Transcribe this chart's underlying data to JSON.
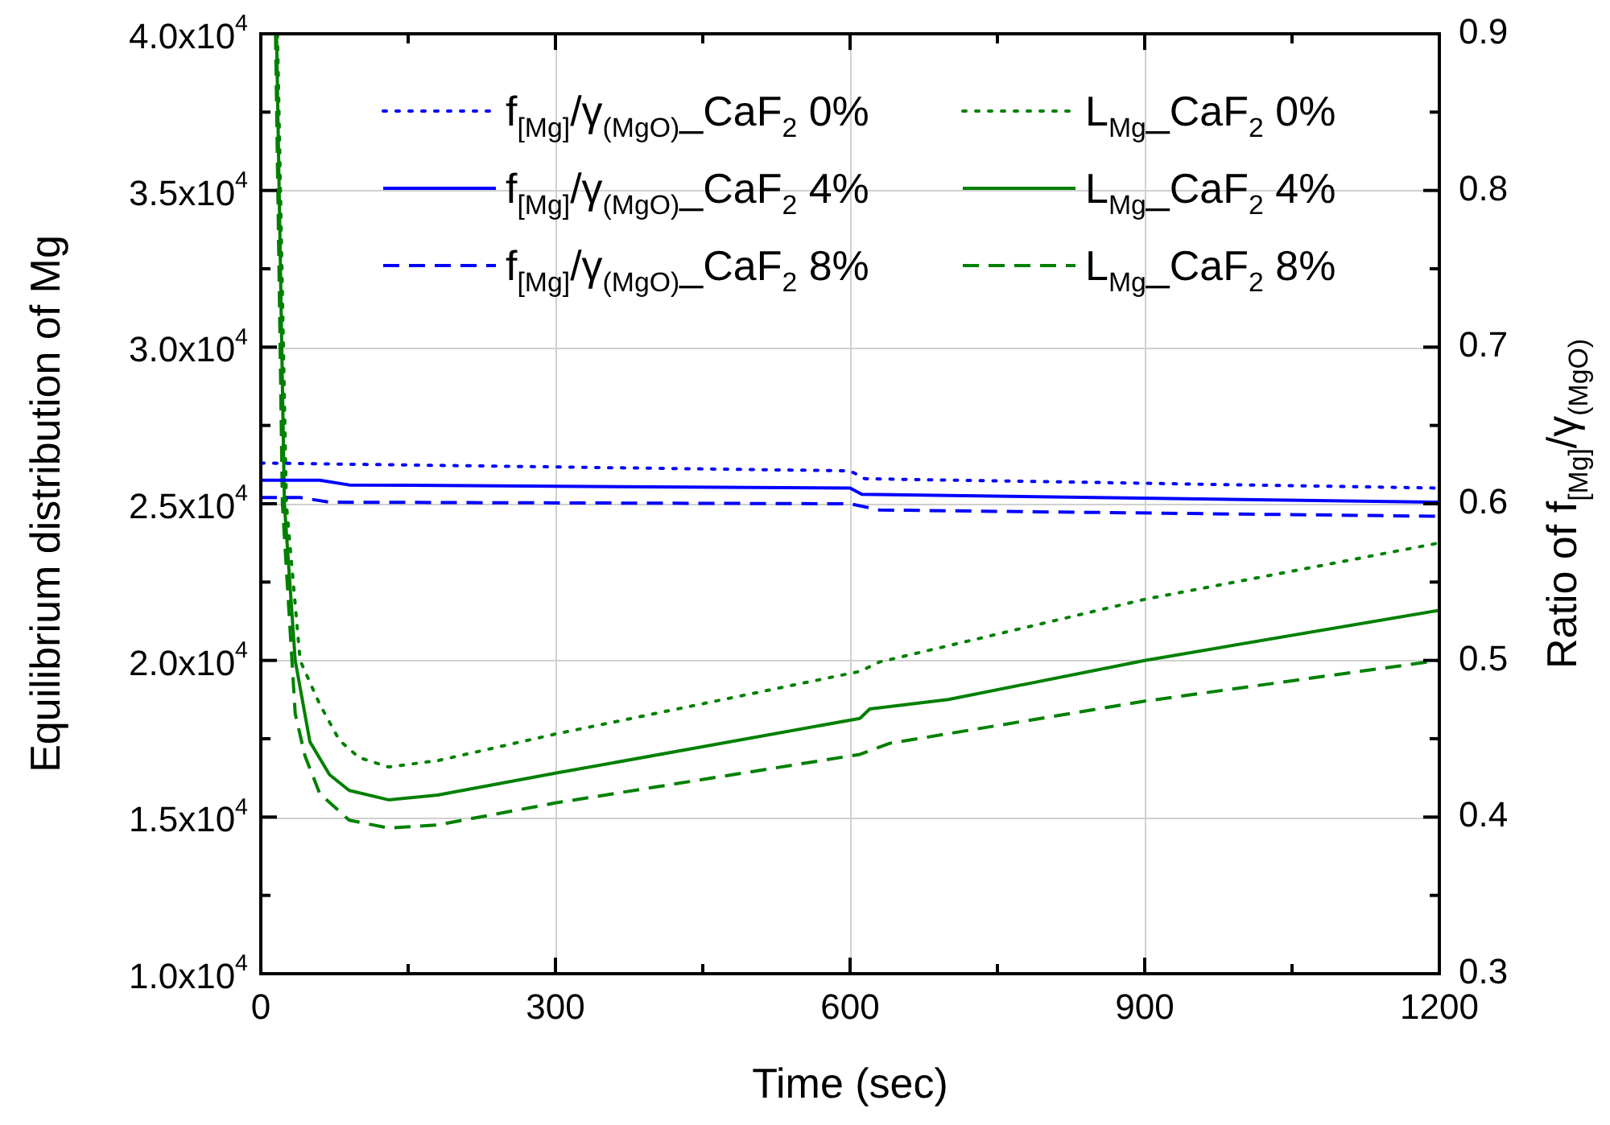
{
  "chart_data": {
    "type": "line",
    "xlabel": "Time (sec)",
    "ylabel": "Equilibrium distribution of Mg",
    "y2label": "Ratio of f$_{[Mg]}$/γ$_{(MgO)}$",
    "xlim": [
      0,
      1200
    ],
    "xticks": [
      0,
      {
        "value": 150,
        "label": null
      },
      300,
      {
        "value": 450,
        "label": null
      },
      600,
      {
        "value": 750,
        "label": null
      },
      900,
      {
        "value": 1050,
        "label": null
      },
      1200
    ],
    "ylim": [
      10000,
      40000
    ],
    "yticks": [
      {
        "value": 10000,
        "label": "1.0x10$^{4}$"
      },
      {
        "value": 12500,
        "label": null
      },
      {
        "value": 15000,
        "label": "1.5x10$^{4}$"
      },
      {
        "value": 17500,
        "label": null
      },
      {
        "value": 20000,
        "label": "2.0x10$^{4}$"
      },
      {
        "value": 22500,
        "label": null
      },
      {
        "value": 25000,
        "label": "2.5x10$^{4}$"
      },
      {
        "value": 27500,
        "label": null
      },
      {
        "value": 30000,
        "label": "3.0x10$^{4}$"
      },
      {
        "value": 32500,
        "label": null
      },
      {
        "value": 35000,
        "label": "3.5x10$^{4}$"
      },
      {
        "value": 37500,
        "label": null
      },
      {
        "value": 40000,
        "label": "4.0x10$^{4}$"
      }
    ],
    "y2lim": [
      0.3,
      0.9
    ],
    "y2ticks": [
      0.3,
      {
        "value": 0.35,
        "label": null
      },
      0.4,
      {
        "value": 0.45,
        "label": null
      },
      0.5,
      {
        "value": 0.55,
        "label": null
      },
      0.6,
      {
        "value": 0.65,
        "label": null
      },
      0.7,
      {
        "value": 0.75,
        "label": null
      },
      0.8,
      {
        "value": 0.85,
        "label": null
      },
      0.9
    ],
    "grid": true,
    "legend": "top",
    "series": [
      {
        "name": "f$_{[Mg]}$/γ$_{(MgO)}$_CaF$_{2}$ 0%",
        "color": "#0000ff",
        "axis": "y2",
        "line_style": "dotted",
        "x": [
          0,
          600,
          615,
          1200
        ],
        "values": [
          0.626,
          0.621,
          0.616,
          0.61
        ]
      },
      {
        "name": "f$_{[Mg]}$/γ$_{(MgO)}$_CaF$_{2}$ 4%",
        "color": "#0000ff",
        "axis": "y2",
        "line_style": "solid",
        "x": [
          0,
          60,
          90,
          600,
          612,
          1200
        ],
        "values": [
          0.615,
          0.615,
          0.612,
          0.61,
          0.606,
          0.601
        ]
      },
      {
        "name": "f$_{[Mg]}$/γ$_{(MgO)}$_CaF$_{2}$ 8%",
        "color": "#0000ff",
        "axis": "y2",
        "line_style": "dashed",
        "x": [
          0,
          40,
          70,
          600,
          630,
          1200
        ],
        "values": [
          0.604,
          0.604,
          0.601,
          0.6,
          0.596,
          0.592
        ]
      },
      {
        "name": "L$_{Mg}$_CaF$_{2}$ 0%",
        "color": "#008000",
        "line_style": "dotted",
        "x": [
          17,
          26,
          40,
          60,
          80,
          100,
          130,
          180,
          300,
          610,
          630,
          900,
          1200
        ],
        "values": [
          40000,
          25000,
          20000,
          18600,
          17450,
          16900,
          16600,
          16800,
          17650,
          19650,
          19950,
          21950,
          23750
        ]
      },
      {
        "name": "L$_{Mg}$_CaF$_{2}$ 4%",
        "color": "#008000",
        "line_style": "solid",
        "x": [
          16,
          24,
          35,
          50,
          70,
          90,
          130,
          180,
          300,
          610,
          620,
          700,
          900,
          1200
        ],
        "values": [
          40000,
          25000,
          20000,
          17400,
          16350,
          15850,
          15550,
          15700,
          16400,
          18150,
          18450,
          18750,
          20000,
          21600
        ]
      },
      {
        "name": "L$_{Mg}$_CaF$_{2}$ 8%",
        "color": "#008000",
        "line_style": "dashed",
        "x": [
          15,
          22,
          35,
          45,
          60,
          90,
          130,
          180,
          300,
          610,
          640,
          900,
          1200
        ],
        "values": [
          40000,
          25000,
          18300,
          16950,
          15750,
          14900,
          14650,
          14750,
          15450,
          17000,
          17350,
          18700,
          20000
        ]
      }
    ]
  }
}
